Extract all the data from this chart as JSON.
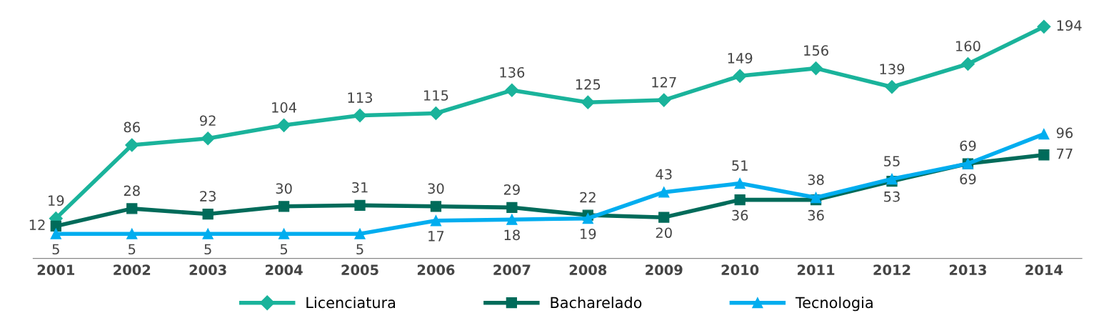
{
  "chart_data": {
    "type": "line",
    "categories": [
      "2001",
      "2002",
      "2003",
      "2004",
      "2005",
      "2006",
      "2007",
      "2008",
      "2009",
      "2010",
      "2011",
      "2012",
      "2013",
      "2014"
    ],
    "series": [
      {
        "name": "Licenciatura",
        "color": "#1ab39b",
        "marker": "diamond",
        "values": [
          19,
          86,
          92,
          104,
          113,
          115,
          136,
          125,
          127,
          149,
          156,
          139,
          160,
          194
        ]
      },
      {
        "name": "Bacharelado",
        "color": "#006b5a",
        "marker": "square",
        "values": [
          12,
          28,
          23,
          30,
          31,
          30,
          29,
          22,
          20,
          36,
          36,
          53,
          69,
          77
        ]
      },
      {
        "name": "Tecnologia",
        "color": "#00adef",
        "marker": "triangle",
        "values": [
          5,
          5,
          5,
          5,
          5,
          17,
          18,
          19,
          43,
          51,
          38,
          55,
          69,
          96
        ]
      }
    ],
    "data_labels": true,
    "legend": "bottom",
    "grid": false,
    "line_style": "solid"
  }
}
